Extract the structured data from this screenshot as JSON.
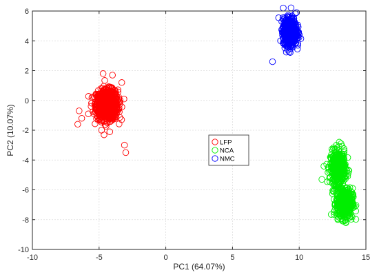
{
  "chart_data": {
    "type": "scatter",
    "xlabel": "PC1 (64.07%)",
    "ylabel": "PC2 (10.07%)",
    "xlim": [
      -10,
      15
    ],
    "ylim": [
      -10,
      6
    ],
    "xticks": [
      -10,
      -5,
      0,
      5,
      10,
      15
    ],
    "yticks": [
      -10,
      -8,
      -6,
      -4,
      -2,
      0,
      2,
      4,
      6
    ],
    "grid": true,
    "legend_position": "center",
    "marker": "open-circle",
    "series": [
      {
        "name": "LFP",
        "color": "#ff0000",
        "clusters": [
          {
            "x_mean": -4.4,
            "y_mean": -0.3,
            "x_sd": 0.4,
            "y_sd": 0.5,
            "n": 900
          }
        ],
        "points": [
          {
            "x": -6.5,
            "y": -0.7
          },
          {
            "x": -6.3,
            "y": -1.2
          },
          {
            "x": -6.6,
            "y": -1.6
          },
          {
            "x": -5.8,
            "y": -0.9
          },
          {
            "x": -5.6,
            "y": -0.4
          },
          {
            "x": -4.7,
            "y": 1.8
          },
          {
            "x": -4.0,
            "y": 1.7
          },
          {
            "x": -3.3,
            "y": 1.2
          },
          {
            "x": -4.2,
            "y": -2.1
          },
          {
            "x": -3.1,
            "y": -3.0
          },
          {
            "x": -3.0,
            "y": -3.5
          }
        ]
      },
      {
        "name": "NCA",
        "color": "#00ee00",
        "clusters": [
          {
            "x_mean": 12.9,
            "y_mean": -4.5,
            "x_sd": 0.28,
            "y_sd": 0.55,
            "n": 450
          },
          {
            "x_mean": 13.4,
            "y_mean": -6.9,
            "x_sd": 0.3,
            "y_sd": 0.5,
            "n": 450
          }
        ],
        "points": [
          {
            "x": 11.7,
            "y": -5.3
          },
          {
            "x": 13.0,
            "y": -2.8
          },
          {
            "x": 13.5,
            "y": -8.2
          },
          {
            "x": 13.9,
            "y": -6.3
          },
          {
            "x": 12.8,
            "y": -5.8
          }
        ]
      },
      {
        "name": "NMC",
        "color": "#0000ff",
        "clusters": [
          {
            "x_mean": 9.3,
            "y_mean": 4.6,
            "x_sd": 0.25,
            "y_sd": 0.45,
            "n": 700
          }
        ],
        "points": [
          {
            "x": 8.0,
            "y": 2.6
          },
          {
            "x": 9.9,
            "y": 3.7
          },
          {
            "x": 9.8,
            "y": 5.9
          },
          {
            "x": 9.6,
            "y": 5.5
          }
        ]
      }
    ]
  }
}
